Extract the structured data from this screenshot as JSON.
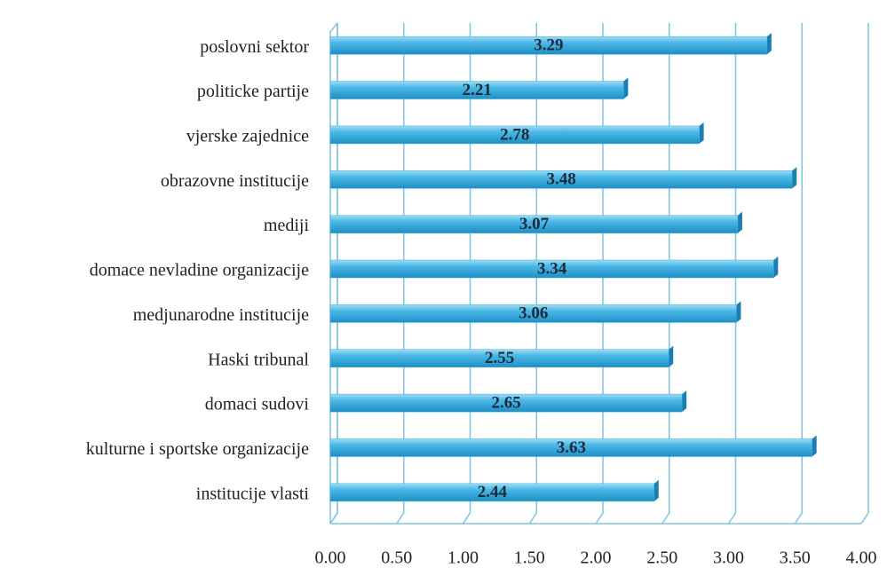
{
  "chart_data": {
    "type": "hbar",
    "categories": [
      "poslovni sektor",
      "politicke partije",
      "vjerske zajednice",
      "obrazovne institucije",
      "mediji",
      "domace nevladine organizacije",
      "medjunarodne institucije",
      "Haski tribunal",
      "domaci sudovi",
      "kulturne i sportske organizacije",
      "institucije vlasti"
    ],
    "values": [
      3.29,
      2.21,
      2.78,
      3.48,
      3.07,
      3.34,
      3.06,
      2.55,
      2.65,
      3.63,
      2.44
    ],
    "color": "#3aaee0",
    "xlim": [
      0,
      4
    ],
    "xticks": [
      {
        "value": 0,
        "label": "0.00"
      },
      {
        "value": 0.5,
        "label": "0.50"
      },
      {
        "value": 1,
        "label": "1.00"
      },
      {
        "value": 1.5,
        "label": "1.50"
      },
      {
        "value": 2,
        "label": "2.00"
      },
      {
        "value": 2.5,
        "label": "2.50"
      },
      {
        "value": 3,
        "label": "3.00"
      },
      {
        "value": 3.5,
        "label": "3.50"
      },
      {
        "value": 4,
        "label": "4.00"
      }
    ],
    "grid": true
  }
}
